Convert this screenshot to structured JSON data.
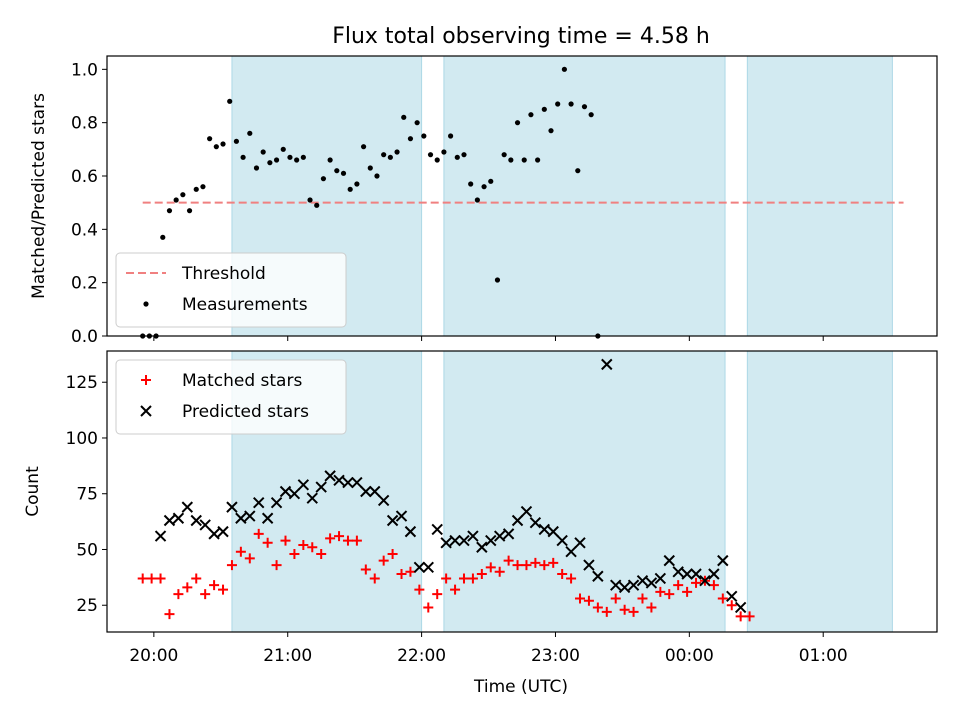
{
  "figure": {
    "title": "Flux total observing time = 4.58 h",
    "xlabel": "Time (UTC)",
    "x_tick_labels": [
      "20:00",
      "21:00",
      "22:00",
      "23:00",
      "00:00",
      "01:00"
    ],
    "span_color": "#add8e6",
    "shaded_intervals": [
      [
        "20:35",
        "22:00"
      ],
      [
        "22:10",
        "00:16"
      ],
      [
        "00:26",
        "01:31"
      ]
    ]
  },
  "chart_data": [
    {
      "type": "scatter",
      "ylabel": "Matched/Predicted stars",
      "ylim": [
        0,
        1.05
      ],
      "y_ticks": [
        0.0,
        0.2,
        0.4,
        0.6,
        0.8,
        1.0
      ],
      "y_tick_labels": [
        "0.0",
        "0.2",
        "0.4",
        "0.6",
        "0.8",
        "1.0"
      ],
      "legend_position": "lower-left",
      "threshold": {
        "name": "Threshold",
        "value": 0.5,
        "x_range": [
          "19:55",
          "01:36"
        ],
        "color": "#f08080"
      },
      "series": [
        {
          "name": "Measurements",
          "color": "#000000",
          "points": [
            [
              "19:55",
              0.0
            ],
            [
              "19:58",
              0.0
            ],
            [
              "20:01",
              0.0
            ],
            [
              "20:04",
              0.37
            ],
            [
              "20:07",
              0.47
            ],
            [
              "20:10",
              0.51
            ],
            [
              "20:13",
              0.53
            ],
            [
              "20:16",
              0.47
            ],
            [
              "20:19",
              0.55
            ],
            [
              "20:22",
              0.56
            ],
            [
              "20:25",
              0.74
            ],
            [
              "20:28",
              0.71
            ],
            [
              "20:31",
              0.72
            ],
            [
              "20:34",
              0.88
            ],
            [
              "20:37",
              0.73
            ],
            [
              "20:40",
              0.67
            ],
            [
              "20:43",
              0.76
            ],
            [
              "20:46",
              0.63
            ],
            [
              "20:49",
              0.69
            ],
            [
              "20:52",
              0.65
            ],
            [
              "20:55",
              0.66
            ],
            [
              "20:58",
              0.7
            ],
            [
              "21:01",
              0.67
            ],
            [
              "21:04",
              0.66
            ],
            [
              "21:07",
              0.67
            ],
            [
              "21:10",
              0.51
            ],
            [
              "21:13",
              0.49
            ],
            [
              "21:16",
              0.59
            ],
            [
              "21:19",
              0.66
            ],
            [
              "21:22",
              0.62
            ],
            [
              "21:25",
              0.61
            ],
            [
              "21:28",
              0.55
            ],
            [
              "21:31",
              0.57
            ],
            [
              "21:34",
              0.71
            ],
            [
              "21:37",
              0.63
            ],
            [
              "21:40",
              0.6
            ],
            [
              "21:43",
              0.68
            ],
            [
              "21:46",
              0.67
            ],
            [
              "21:49",
              0.69
            ],
            [
              "21:52",
              0.82
            ],
            [
              "21:55",
              0.74
            ],
            [
              "21:58",
              0.8
            ],
            [
              "22:01",
              0.75
            ],
            [
              "22:04",
              0.68
            ],
            [
              "22:07",
              0.66
            ],
            [
              "22:10",
              0.69
            ],
            [
              "22:13",
              0.75
            ],
            [
              "22:16",
              0.67
            ],
            [
              "22:19",
              0.68
            ],
            [
              "22:22",
              0.57
            ],
            [
              "22:25",
              0.51
            ],
            [
              "22:28",
              0.56
            ],
            [
              "22:31",
              0.58
            ],
            [
              "22:34",
              0.21
            ],
            [
              "22:37",
              0.68
            ],
            [
              "22:40",
              0.66
            ],
            [
              "22:43",
              0.8
            ],
            [
              "22:46",
              0.66
            ],
            [
              "22:49",
              0.83
            ],
            [
              "22:52",
              0.66
            ],
            [
              "22:55",
              0.85
            ],
            [
              "22:58",
              0.77
            ],
            [
              "23:01",
              0.87
            ],
            [
              "23:04",
              1.0
            ],
            [
              "23:07",
              0.87
            ],
            [
              "23:10",
              0.62
            ],
            [
              "23:13",
              0.86
            ],
            [
              "23:16",
              0.83
            ],
            [
              "23:19",
              0.0
            ]
          ]
        }
      ]
    },
    {
      "type": "scatter",
      "ylabel": "Count",
      "ylim": [
        13,
        139
      ],
      "y_ticks": [
        25,
        50,
        75,
        100,
        125
      ],
      "y_tick_labels": [
        "25",
        "50",
        "75",
        "100",
        "125"
      ],
      "legend_position": "upper-left",
      "series": [
        {
          "name": "Matched stars",
          "marker": "plus",
          "color": "#ff0000",
          "points": [
            [
              "19:55",
              37
            ],
            [
              "19:59",
              37
            ],
            [
              "20:03",
              37
            ],
            [
              "20:07",
              21
            ],
            [
              "20:11",
              30
            ],
            [
              "20:15",
              33
            ],
            [
              "20:19",
              37
            ],
            [
              "20:23",
              30
            ],
            [
              "20:27",
              34
            ],
            [
              "20:31",
              32
            ],
            [
              "20:35",
              43
            ],
            [
              "20:39",
              49
            ],
            [
              "20:43",
              46
            ],
            [
              "20:47",
              57
            ],
            [
              "20:51",
              53
            ],
            [
              "20:55",
              43
            ],
            [
              "20:59",
              54
            ],
            [
              "21:03",
              48
            ],
            [
              "21:07",
              52
            ],
            [
              "21:11",
              51
            ],
            [
              "21:15",
              48
            ],
            [
              "21:19",
              55
            ],
            [
              "21:23",
              56
            ],
            [
              "21:27",
              54
            ],
            [
              "21:31",
              54
            ],
            [
              "21:35",
              41
            ],
            [
              "21:39",
              37
            ],
            [
              "21:43",
              45
            ],
            [
              "21:47",
              48
            ],
            [
              "21:51",
              39
            ],
            [
              "21:55",
              40
            ],
            [
              "21:59",
              32
            ],
            [
              "22:03",
              24
            ],
            [
              "22:07",
              30
            ],
            [
              "22:11",
              37
            ],
            [
              "22:15",
              32
            ],
            [
              "22:19",
              37
            ],
            [
              "22:23",
              37
            ],
            [
              "22:27",
              39
            ],
            [
              "22:31",
              42
            ],
            [
              "22:35",
              40
            ],
            [
              "22:39",
              45
            ],
            [
              "22:43",
              43
            ],
            [
              "22:47",
              43
            ],
            [
              "22:51",
              44
            ],
            [
              "22:55",
              43
            ],
            [
              "22:59",
              44
            ],
            [
              "23:03",
              39
            ],
            [
              "23:07",
              37
            ],
            [
              "23:11",
              28
            ],
            [
              "23:15",
              27
            ],
            [
              "23:19",
              24
            ],
            [
              "23:23",
              22
            ],
            [
              "23:27",
              28
            ],
            [
              "23:31",
              23
            ],
            [
              "23:35",
              22
            ],
            [
              "23:39",
              28
            ],
            [
              "23:43",
              24
            ],
            [
              "23:47",
              31
            ],
            [
              "23:51",
              30
            ],
            [
              "23:55",
              34
            ],
            [
              "23:59",
              31
            ],
            [
              "00:03",
              35
            ],
            [
              "00:07",
              36
            ],
            [
              "00:11",
              34
            ],
            [
              "00:15",
              28
            ],
            [
              "00:19",
              25
            ],
            [
              "00:23",
              20
            ],
            [
              "00:27",
              20
            ]
          ]
        },
        {
          "name": "Predicted stars",
          "marker": "x",
          "color": "#000000",
          "points": [
            [
              "20:03",
              56
            ],
            [
              "20:07",
              63
            ],
            [
              "20:11",
              64
            ],
            [
              "20:15",
              69
            ],
            [
              "20:19",
              63
            ],
            [
              "20:23",
              61
            ],
            [
              "20:27",
              57
            ],
            [
              "20:31",
              58
            ],
            [
              "20:35",
              69
            ],
            [
              "20:39",
              64
            ],
            [
              "20:43",
              65
            ],
            [
              "20:47",
              71
            ],
            [
              "20:51",
              64
            ],
            [
              "20:55",
              71
            ],
            [
              "20:59",
              76
            ],
            [
              "21:03",
              75
            ],
            [
              "21:07",
              79
            ],
            [
              "21:11",
              73
            ],
            [
              "21:15",
              78
            ],
            [
              "21:19",
              83
            ],
            [
              "21:23",
              81
            ],
            [
              "21:27",
              80
            ],
            [
              "21:31",
              80
            ],
            [
              "21:35",
              76
            ],
            [
              "21:39",
              76
            ],
            [
              "21:43",
              72
            ],
            [
              "21:47",
              63
            ],
            [
              "21:51",
              65
            ],
            [
              "21:55",
              58
            ],
            [
              "21:59",
              42
            ],
            [
              "22:03",
              42
            ],
            [
              "22:07",
              59
            ],
            [
              "22:11",
              53
            ],
            [
              "22:15",
              54
            ],
            [
              "22:19",
              54
            ],
            [
              "22:23",
              56
            ],
            [
              "22:27",
              51
            ],
            [
              "22:31",
              54
            ],
            [
              "22:35",
              56
            ],
            [
              "22:39",
              57
            ],
            [
              "22:43",
              63
            ],
            [
              "22:47",
              67
            ],
            [
              "22:51",
              62
            ],
            [
              "22:55",
              59
            ],
            [
              "22:59",
              58
            ],
            [
              "23:03",
              54
            ],
            [
              "23:07",
              49
            ],
            [
              "23:11",
              53
            ],
            [
              "23:15",
              43
            ],
            [
              "23:19",
              38
            ],
            [
              "23:23",
              133
            ],
            [
              "23:27",
              34
            ],
            [
              "23:31",
              33
            ],
            [
              "23:35",
              34
            ],
            [
              "23:39",
              36
            ],
            [
              "23:43",
              35
            ],
            [
              "23:47",
              37
            ],
            [
              "23:51",
              45
            ],
            [
              "23:55",
              40
            ],
            [
              "23:59",
              39
            ],
            [
              "00:03",
              39
            ],
            [
              "00:07",
              36
            ],
            [
              "00:11",
              39
            ],
            [
              "00:15",
              45
            ],
            [
              "00:19",
              29
            ],
            [
              "00:23",
              24
            ]
          ]
        }
      ]
    }
  ]
}
